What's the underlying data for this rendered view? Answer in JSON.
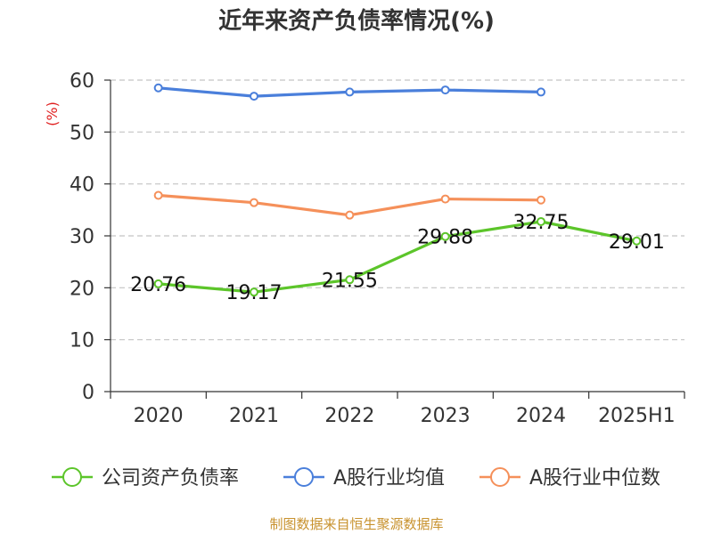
{
  "chart_data": {
    "type": "line",
    "title": "近年来资产负债率情况(%)",
    "ylabel": "(%)",
    "xlabel": "",
    "categories": [
      "2020",
      "2021",
      "2022",
      "2023",
      "2024",
      "2025H1"
    ],
    "ylim": [
      0,
      60
    ],
    "yticks": [
      0,
      10,
      20,
      30,
      40,
      50,
      60
    ],
    "grid": true,
    "legend_position": "bottom",
    "series": [
      {
        "name": "公司资产负债率",
        "color": "#5cc52a",
        "values": [
          20.76,
          19.17,
          21.55,
          29.88,
          32.75,
          29.01
        ],
        "labels": [
          "20.76",
          "19.17",
          "21.55",
          "29.88",
          "32.75",
          "29.01"
        ]
      },
      {
        "name": "A股行业均值",
        "color": "#4a7fdb",
        "values": [
          58.5,
          56.9,
          57.7,
          58.1,
          57.7,
          null
        ]
      },
      {
        "name": "A股行业中位数",
        "color": "#f5905a",
        "values": [
          37.8,
          36.4,
          34.0,
          37.1,
          36.9,
          null
        ]
      }
    ]
  },
  "source": "制图数据来自恒生聚源数据库"
}
